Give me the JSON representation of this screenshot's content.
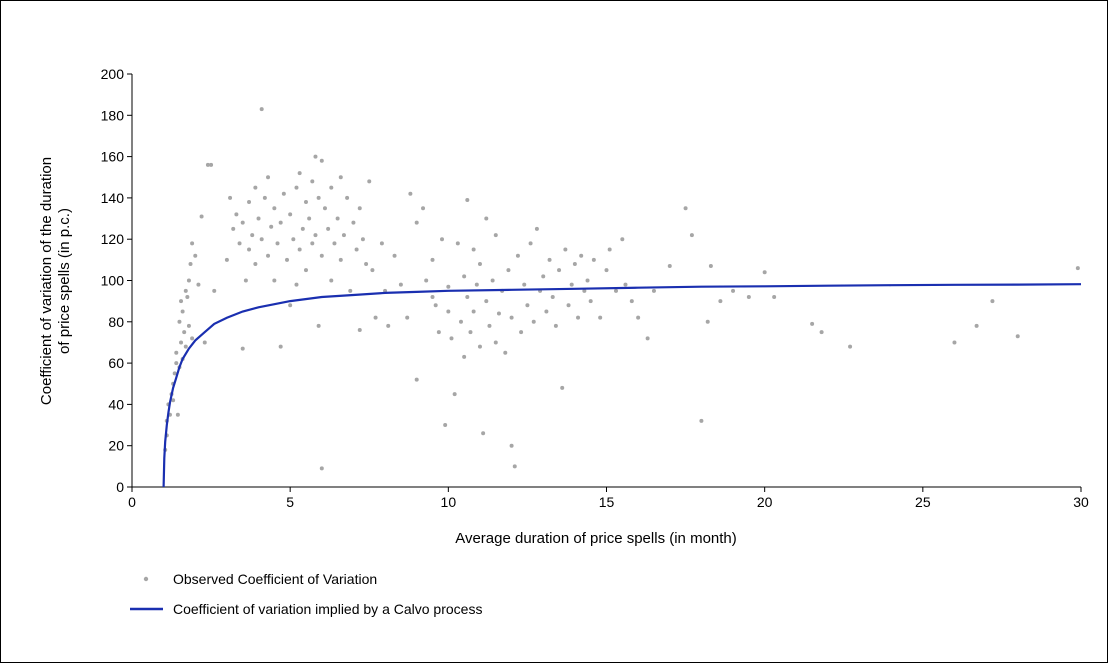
{
  "chart_data": {
    "type": "scatter",
    "xlabel": "Average duration of price spells (in month)",
    "ylabel": [
      "Coefficient of variation of the duration",
      "of price spells (in p.c.)"
    ],
    "xlim": [
      0,
      30
    ],
    "ylim": [
      0,
      200
    ],
    "xticks": [
      0,
      5,
      10,
      15,
      20,
      25,
      30
    ],
    "xtick_labels": [
      "0",
      "5",
      "10",
      "15",
      "20",
      "25",
      "30"
    ],
    "yticks": [
      0,
      20,
      40,
      60,
      80,
      100,
      120,
      140,
      160,
      180,
      200
    ],
    "ytick_labels": [
      "0",
      "20",
      "40",
      "60",
      "80",
      "100",
      "120",
      "140",
      "160",
      "180",
      "200"
    ],
    "grid": false,
    "legend_position": "bottom-left",
    "series": [
      {
        "name": "Observed Coefficient of Variation",
        "kind": "scatter",
        "color": "#a6a6a6",
        "points": [
          [
            1.05,
            18
          ],
          [
            1.1,
            25
          ],
          [
            1.1,
            32
          ],
          [
            1.15,
            40
          ],
          [
            1.2,
            35
          ],
          [
            1.25,
            45
          ],
          [
            1.3,
            50
          ],
          [
            1.3,
            42
          ],
          [
            1.35,
            55
          ],
          [
            1.4,
            60
          ],
          [
            1.4,
            65
          ],
          [
            1.45,
            35
          ],
          [
            1.5,
            80
          ],
          [
            1.5,
            58
          ],
          [
            1.55,
            90
          ],
          [
            1.55,
            70
          ],
          [
            1.6,
            62
          ],
          [
            1.6,
            85
          ],
          [
            1.65,
            75
          ],
          [
            1.7,
            95
          ],
          [
            1.7,
            68
          ],
          [
            1.75,
            92
          ],
          [
            1.8,
            100
          ],
          [
            1.8,
            78
          ],
          [
            1.85,
            108
          ],
          [
            1.9,
            118
          ],
          [
            1.9,
            72
          ],
          [
            2.0,
            112
          ],
          [
            2.1,
            98
          ],
          [
            2.2,
            131
          ],
          [
            2.3,
            70
          ],
          [
            2.4,
            156
          ],
          [
            2.5,
            156
          ],
          [
            2.6,
            95
          ],
          [
            3.0,
            110
          ],
          [
            3.1,
            140
          ],
          [
            3.2,
            125
          ],
          [
            3.3,
            132
          ],
          [
            3.4,
            118
          ],
          [
            3.5,
            128
          ],
          [
            3.5,
            67
          ],
          [
            3.6,
            100
          ],
          [
            3.7,
            138
          ],
          [
            3.7,
            115
          ],
          [
            3.8,
            122
          ],
          [
            3.9,
            145
          ],
          [
            3.9,
            108
          ],
          [
            4.0,
            130
          ],
          [
            4.1,
            183
          ],
          [
            4.1,
            120
          ],
          [
            4.2,
            140
          ],
          [
            4.3,
            150
          ],
          [
            4.3,
            112
          ],
          [
            4.4,
            126
          ],
          [
            4.5,
            135
          ],
          [
            4.5,
            100
          ],
          [
            4.6,
            118
          ],
          [
            4.7,
            128
          ],
          [
            4.7,
            68
          ],
          [
            4.8,
            142
          ],
          [
            4.9,
            110
          ],
          [
            5.0,
            132
          ],
          [
            5.0,
            88
          ],
          [
            5.1,
            120
          ],
          [
            5.2,
            145
          ],
          [
            5.2,
            98
          ],
          [
            5.3,
            152
          ],
          [
            5.3,
            115
          ],
          [
            5.4,
            125
          ],
          [
            5.5,
            138
          ],
          [
            5.5,
            105
          ],
          [
            5.6,
            130
          ],
          [
            5.7,
            118
          ],
          [
            5.7,
            148
          ],
          [
            5.8,
            160
          ],
          [
            5.8,
            122
          ],
          [
            5.9,
            140
          ],
          [
            5.9,
            78
          ],
          [
            6.0,
            158
          ],
          [
            6.0,
            112
          ],
          [
            6.0,
            9
          ],
          [
            6.1,
            135
          ],
          [
            6.2,
            125
          ],
          [
            6.3,
            145
          ],
          [
            6.3,
            100
          ],
          [
            6.4,
            118
          ],
          [
            6.5,
            130
          ],
          [
            6.6,
            150
          ],
          [
            6.6,
            110
          ],
          [
            6.7,
            122
          ],
          [
            6.8,
            140
          ],
          [
            6.9,
            95
          ],
          [
            7.0,
            128
          ],
          [
            7.1,
            115
          ],
          [
            7.2,
            135
          ],
          [
            7.2,
            76
          ],
          [
            7.3,
            120
          ],
          [
            7.4,
            108
          ],
          [
            7.5,
            148
          ],
          [
            7.6,
            105
          ],
          [
            7.7,
            82
          ],
          [
            7.9,
            118
          ],
          [
            8.0,
            95
          ],
          [
            8.1,
            78
          ],
          [
            8.3,
            112
          ],
          [
            8.5,
            98
          ],
          [
            8.7,
            82
          ],
          [
            9.0,
            128
          ],
          [
            9.3,
            100
          ],
          [
            9.5,
            92
          ],
          [
            9.7,
            75
          ],
          [
            8.8,
            142
          ],
          [
            9.0,
            52
          ],
          [
            9.2,
            135
          ],
          [
            9.5,
            110
          ],
          [
            9.6,
            88
          ],
          [
            9.8,
            120
          ],
          [
            9.9,
            30
          ],
          [
            10.0,
            85
          ],
          [
            10.0,
            97
          ],
          [
            10.1,
            72
          ],
          [
            10.2,
            45
          ],
          [
            10.3,
            118
          ],
          [
            10.4,
            80
          ],
          [
            10.5,
            102
          ],
          [
            10.5,
            63
          ],
          [
            10.6,
            92
          ],
          [
            10.6,
            139
          ],
          [
            10.7,
            75
          ],
          [
            10.8,
            115
          ],
          [
            10.8,
            85
          ],
          [
            10.9,
            98
          ],
          [
            11.0,
            68
          ],
          [
            11.0,
            108
          ],
          [
            11.1,
            26
          ],
          [
            11.2,
            90
          ],
          [
            11.2,
            130
          ],
          [
            11.3,
            78
          ],
          [
            11.4,
            100
          ],
          [
            11.5,
            70
          ],
          [
            11.5,
            122
          ],
          [
            11.6,
            84
          ],
          [
            11.7,
            95
          ],
          [
            11.8,
            65
          ],
          [
            11.9,
            105
          ],
          [
            12.0,
            20
          ],
          [
            12.0,
            82
          ],
          [
            12.1,
            10
          ],
          [
            12.2,
            112
          ],
          [
            12.3,
            75
          ],
          [
            12.4,
            98
          ],
          [
            12.5,
            88
          ],
          [
            12.6,
            118
          ],
          [
            12.7,
            80
          ],
          [
            12.8,
            125
          ],
          [
            12.9,
            95
          ],
          [
            13.0,
            102
          ],
          [
            13.1,
            85
          ],
          [
            13.2,
            110
          ],
          [
            13.3,
            92
          ],
          [
            13.4,
            78
          ],
          [
            13.5,
            105
          ],
          [
            13.6,
            48
          ],
          [
            13.7,
            115
          ],
          [
            13.8,
            88
          ],
          [
            13.9,
            98
          ],
          [
            14.0,
            108
          ],
          [
            14.1,
            82
          ],
          [
            14.2,
            112
          ],
          [
            14.3,
            95
          ],
          [
            14.4,
            100
          ],
          [
            14.5,
            90
          ],
          [
            14.6,
            110
          ],
          [
            14.8,
            82
          ],
          [
            15.0,
            105
          ],
          [
            15.1,
            115
          ],
          [
            15.3,
            95
          ],
          [
            15.5,
            120
          ],
          [
            15.6,
            98
          ],
          [
            15.8,
            90
          ],
          [
            16.0,
            82
          ],
          [
            16.3,
            72
          ],
          [
            16.5,
            95
          ],
          [
            17.0,
            107
          ],
          [
            17.5,
            135
          ],
          [
            17.7,
            122
          ],
          [
            18.0,
            32
          ],
          [
            18.2,
            80
          ],
          [
            18.3,
            107
          ],
          [
            18.6,
            90
          ],
          [
            19.0,
            95
          ],
          [
            19.5,
            92
          ],
          [
            20.0,
            104
          ],
          [
            20.3,
            92
          ],
          [
            21.5,
            79
          ],
          [
            21.8,
            75
          ],
          [
            22.7,
            68
          ],
          [
            26.0,
            70
          ],
          [
            26.7,
            78
          ],
          [
            27.2,
            90
          ],
          [
            28.0,
            73
          ],
          [
            29.9,
            106
          ]
        ]
      },
      {
        "name": "Coefficient of variation implied by a Calvo process",
        "kind": "line",
        "color": "#1a2fb0",
        "points": [
          [
            1.0,
            0
          ],
          [
            1.02,
            14
          ],
          [
            1.05,
            22
          ],
          [
            1.1,
            30
          ],
          [
            1.15,
            36
          ],
          [
            1.2,
            41
          ],
          [
            1.3,
            48
          ],
          [
            1.4,
            53
          ],
          [
            1.5,
            58
          ],
          [
            1.6,
            62
          ],
          [
            1.8,
            67
          ],
          [
            2.0,
            71
          ],
          [
            2.3,
            75
          ],
          [
            2.6,
            79
          ],
          [
            3.0,
            82
          ],
          [
            3.5,
            85
          ],
          [
            4.0,
            87
          ],
          [
            4.5,
            88.5
          ],
          [
            5.0,
            90
          ],
          [
            6.0,
            92
          ],
          [
            7.0,
            93
          ],
          [
            8.0,
            94
          ],
          [
            9.0,
            94.5
          ],
          [
            10.0,
            95
          ],
          [
            12.0,
            95.5
          ],
          [
            14.0,
            96
          ],
          [
            16.0,
            96.5
          ],
          [
            18.0,
            97
          ],
          [
            20.0,
            97.2
          ],
          [
            22.0,
            97.5
          ],
          [
            24.0,
            97.7
          ],
          [
            26.0,
            97.9
          ],
          [
            28.0,
            98
          ],
          [
            30.0,
            98.2
          ]
        ]
      }
    ]
  }
}
